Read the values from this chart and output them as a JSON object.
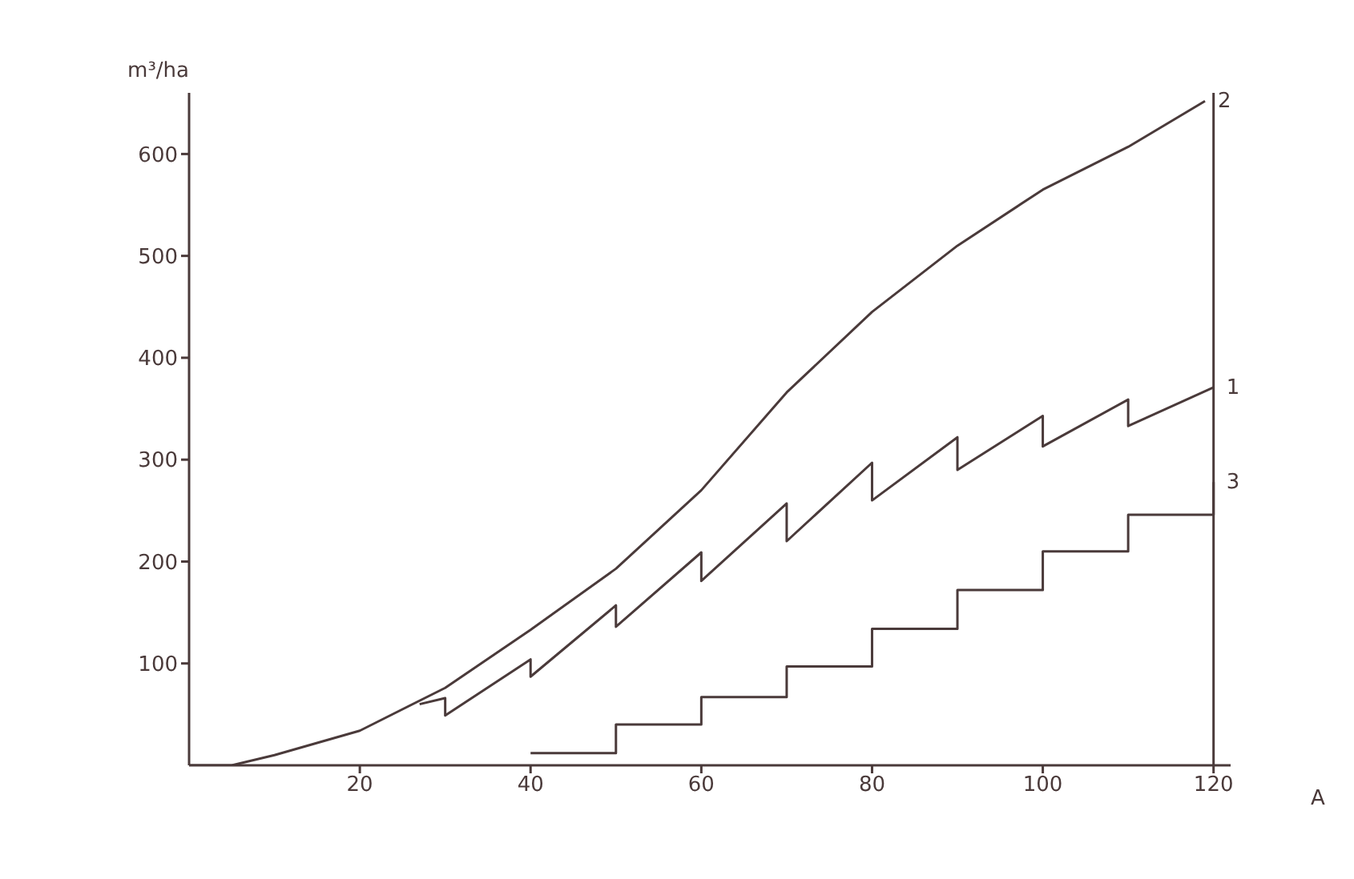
{
  "chart_data": {
    "type": "line",
    "xlabel": "A",
    "ylabel": "m³/ha",
    "xlim": [
      0,
      122
    ],
    "ylim": [
      0,
      660
    ],
    "xticks": [
      20,
      40,
      60,
      80,
      100,
      120
    ],
    "yticks": [
      100,
      200,
      300,
      400,
      500,
      600
    ],
    "marker": "none",
    "line_style": "solid",
    "ref_lines": [
      {
        "axis": "x",
        "value": 120,
        "color": "#4a3a3a"
      }
    ],
    "series": [
      {
        "name": "1",
        "color": "#4a3a3a",
        "x": [
          27,
          30,
          30,
          40,
          40,
          50,
          50,
          60,
          60,
          70,
          70,
          80,
          80,
          90,
          90,
          100,
          100,
          110,
          110,
          120
        ],
        "values": [
          60,
          66,
          49,
          104,
          87,
          157,
          136,
          209,
          181,
          257,
          220,
          297,
          260,
          322,
          290,
          343,
          313,
          359,
          333,
          371
        ]
      },
      {
        "name": "2",
        "color": "#4a3a3a",
        "x": [
          0,
          5,
          10,
          20,
          30,
          40,
          50,
          60,
          70,
          80,
          90,
          100,
          110,
          119
        ],
        "values": [
          0,
          0,
          10,
          34,
          76,
          133,
          193,
          270,
          366,
          445,
          510,
          565,
          607,
          652
        ]
      },
      {
        "name": "3",
        "type": "step",
        "color": "#4a3a3a",
        "x": [
          40,
          50,
          60,
          70,
          80,
          90,
          100,
          110,
          120
        ],
        "values": [
          12,
          40,
          67,
          97,
          134,
          172,
          210,
          246,
          278
        ]
      }
    ]
  }
}
